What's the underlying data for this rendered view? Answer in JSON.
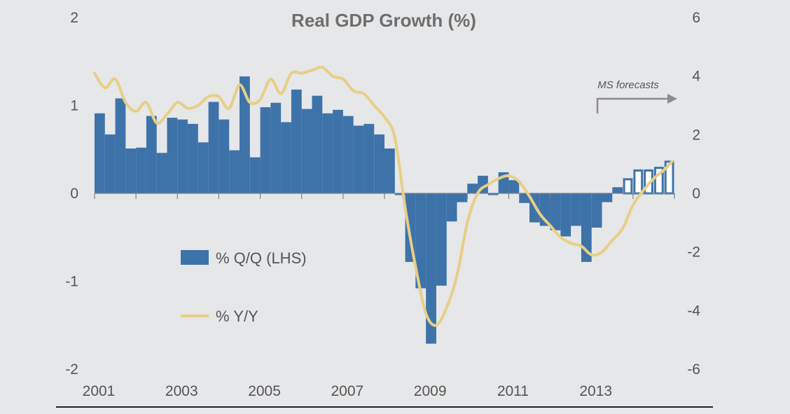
{
  "chart_data": {
    "type": "bar+line",
    "title": "Real GDP Growth (%)",
    "left_axis": {
      "ylim": [
        -2,
        2
      ],
      "ticks": [
        "2",
        "1",
        "0",
        "-1",
        "-2"
      ]
    },
    "right_axis": {
      "ylim": [
        -6,
        6
      ],
      "ticks": [
        "6",
        "4",
        "2",
        "0",
        "-2",
        "-4",
        "-6"
      ]
    },
    "x_range": [
      2001,
      2015
    ],
    "x_tick_labels": [
      "2001",
      "2003",
      "2005",
      "2007",
      "2009",
      "2011",
      "2013"
    ],
    "annotation": "MS forecasts",
    "forecast_start_index": 51,
    "series": [
      {
        "name": "% Q/Q (LHS)",
        "type": "bar",
        "axis": "left",
        "color": "#3e73a9",
        "x": [
          "2001Q1",
          "2001Q2",
          "2001Q3",
          "2001Q4",
          "2002Q1",
          "2002Q2",
          "2002Q3",
          "2002Q4",
          "2003Q1",
          "2003Q2",
          "2003Q3",
          "2003Q4",
          "2004Q1",
          "2004Q2",
          "2004Q3",
          "2004Q4",
          "2005Q1",
          "2005Q2",
          "2005Q3",
          "2005Q4",
          "2006Q1",
          "2006Q2",
          "2006Q3",
          "2006Q4",
          "2007Q1",
          "2007Q2",
          "2007Q3",
          "2007Q4",
          "2008Q1",
          "2008Q2",
          "2008Q3",
          "2008Q4",
          "2009Q1",
          "2009Q2",
          "2009Q3",
          "2009Q4",
          "2010Q1",
          "2010Q2",
          "2010Q3",
          "2010Q4",
          "2011Q1",
          "2011Q2",
          "2011Q3",
          "2011Q4",
          "2012Q1",
          "2012Q2",
          "2012Q3",
          "2012Q4",
          "2013Q1",
          "2013Q2",
          "2013Q3",
          "2013Q4",
          "2014Q1",
          "2014Q2",
          "2014Q3",
          "2014Q4"
        ],
        "values": [
          0.91,
          0.67,
          1.08,
          0.51,
          0.52,
          0.88,
          0.46,
          0.86,
          0.84,
          0.79,
          0.58,
          1.04,
          0.84,
          0.49,
          1.33,
          0.41,
          0.98,
          1.03,
          0.81,
          1.18,
          0.96,
          1.11,
          0.91,
          0.95,
          0.88,
          0.77,
          0.79,
          0.67,
          0.51,
          -0.02,
          -0.78,
          -1.08,
          -1.71,
          -1.05,
          -0.32,
          -0.1,
          0.11,
          0.2,
          -0.02,
          0.24,
          0.15,
          -0.11,
          -0.33,
          -0.37,
          -0.42,
          -0.49,
          -0.37,
          -0.78,
          -0.39,
          -0.1,
          0.07,
          0.16,
          0.26,
          0.26,
          0.29,
          0.36
        ]
      },
      {
        "name": "% Y/Y",
        "type": "line",
        "axis": "right",
        "color": "#e8cf86",
        "x": [
          2001.0,
          2001.25,
          2001.5,
          2001.75,
          2002.0,
          2002.25,
          2002.5,
          2002.75,
          2003.0,
          2003.25,
          2003.5,
          2003.75,
          2004.0,
          2004.25,
          2004.5,
          2004.75,
          2005.0,
          2005.25,
          2005.5,
          2005.75,
          2006.0,
          2006.25,
          2006.5,
          2006.75,
          2007.0,
          2007.25,
          2007.5,
          2007.75,
          2008.0,
          2008.25,
          2008.5,
          2008.75,
          2009.0,
          2009.25,
          2009.5,
          2009.75,
          2010.0,
          2010.25,
          2010.5,
          2010.75,
          2011.0,
          2011.25,
          2011.5,
          2011.75,
          2012.0,
          2012.25,
          2012.5,
          2012.75,
          2013.0,
          2013.25,
          2013.5,
          2013.75,
          2014.0,
          2014.25,
          2014.5,
          2014.75,
          2014.95
        ],
        "values": [
          4.1,
          3.6,
          3.9,
          3.1,
          2.8,
          3.1,
          2.4,
          2.7,
          3.1,
          2.9,
          3.0,
          3.3,
          3.3,
          2.9,
          3.7,
          3.1,
          3.2,
          3.9,
          3.4,
          4.1,
          4.1,
          4.2,
          4.3,
          4.0,
          3.9,
          3.5,
          3.4,
          3.0,
          2.6,
          1.9,
          -0.5,
          -2.5,
          -4.1,
          -4.5,
          -3.9,
          -2.8,
          -1.0,
          0.0,
          0.3,
          0.5,
          0.6,
          0.4,
          -0.1,
          -0.7,
          -1.1,
          -1.5,
          -1.7,
          -1.8,
          -2.1,
          -2.0,
          -1.6,
          -1.2,
          -0.4,
          0.1,
          0.5,
          0.8,
          1.1
        ]
      }
    ],
    "legend_position": "center-left",
    "grid": false
  }
}
